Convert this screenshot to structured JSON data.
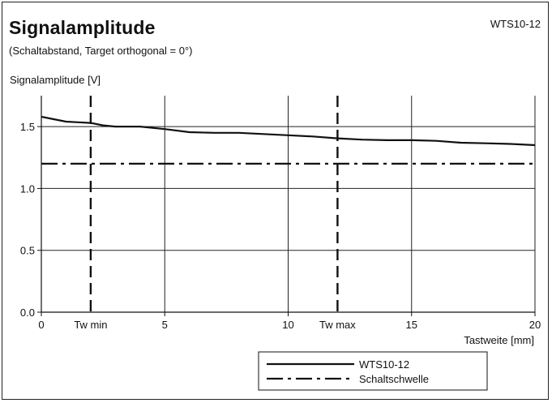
{
  "header": {
    "title": "Signalamplitude",
    "subtitle": "(Schaltabstand, Target orthogonal = 0°)",
    "model": "WTS10-12"
  },
  "chart_data": {
    "type": "line",
    "ylabel": "Signalamplitude [V]",
    "xlabel": "Tastweite [mm]",
    "xlim": [
      0,
      20
    ],
    "ylim": [
      0,
      1.75
    ],
    "x_ticks": [
      0,
      5,
      10,
      15,
      20
    ],
    "x_tick_labels": [
      "0",
      "5",
      "10",
      "15",
      "20"
    ],
    "y_ticks": [
      0,
      0.5,
      1.0,
      1.5
    ],
    "y_tick_labels": [
      "0.0",
      "0.5",
      "1.0",
      "1.5"
    ],
    "grid": true,
    "series": [
      {
        "name": "WTS10-12",
        "style": "solid",
        "x": [
          0,
          0.5,
          1,
          1.5,
          2,
          2.5,
          3,
          4,
          5,
          6,
          7,
          8,
          9,
          10,
          11,
          12,
          13,
          14,
          15,
          16,
          17,
          18,
          19,
          20
        ],
        "y": [
          1.58,
          1.56,
          1.54,
          1.535,
          1.53,
          1.51,
          1.5,
          1.5,
          1.48,
          1.455,
          1.45,
          1.45,
          1.44,
          1.43,
          1.42,
          1.405,
          1.395,
          1.39,
          1.39,
          1.385,
          1.37,
          1.365,
          1.36,
          1.35
        ]
      },
      {
        "name": "Schaltschwelle",
        "style": "dashdot",
        "x": [
          0,
          20
        ],
        "y": [
          1.2,
          1.2
        ]
      }
    ],
    "vertical_markers": [
      {
        "label": "Tw min",
        "x": 2
      },
      {
        "label": "Tw max",
        "x": 12
      }
    ],
    "legend": {
      "placement": "bottom-right",
      "entries": [
        "WTS10-12",
        "Schaltschwelle"
      ]
    }
  }
}
